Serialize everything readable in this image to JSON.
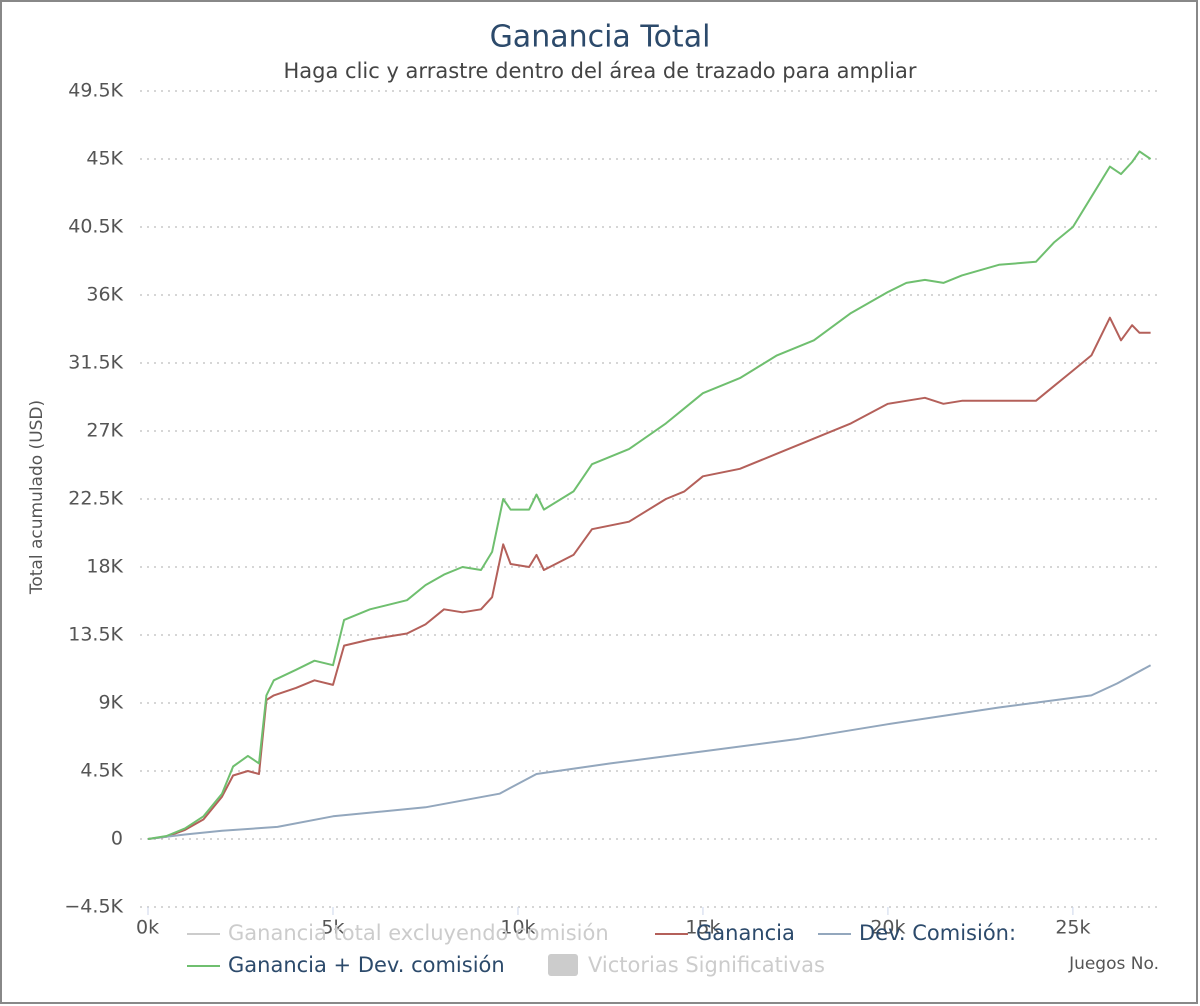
{
  "chart_data": {
    "type": "line",
    "title": "Ganancia Total",
    "subtitle": "Haga clic y arrastre dentro del área de trazado para ampliar",
    "y_label": "Total acumulado (USD)",
    "x_label": "Juegos No.",
    "xlim": [
      0,
      27300
    ],
    "ylim": [
      -4500,
      49500
    ],
    "xticks": [
      {
        "value": 0,
        "label": "0k"
      },
      {
        "value": 5000,
        "label": "5k"
      },
      {
        "value": 10000,
        "label": "10k"
      },
      {
        "value": 15000,
        "label": "15k"
      },
      {
        "value": 20000,
        "label": "20k"
      },
      {
        "value": 25000,
        "label": "25k"
      }
    ],
    "yticks": [
      {
        "value": -4500,
        "label": "−4.5K"
      },
      0,
      {
        "value": 4500,
        "label": "4.5K"
      },
      {
        "value": 9000,
        "label": "9K"
      },
      {
        "value": 13500,
        "label": "13.5K"
      },
      {
        "value": 18000,
        "label": "18K"
      },
      {
        "value": 22500,
        "label": "22.5K"
      },
      {
        "value": 27000,
        "label": "27K"
      },
      {
        "value": 31500,
        "label": "31.5K"
      },
      {
        "value": 36000,
        "label": "36K"
      },
      {
        "value": 40500,
        "label": "40.5K"
      },
      {
        "value": 45000,
        "label": "45K"
      },
      {
        "value": 49500,
        "label": "49.5K"
      }
    ],
    "grid": true,
    "hidden_series": [
      {
        "name": "Ganancia total excluyendo comisión",
        "color": "#cccccc"
      },
      {
        "name": "Victorias Significativas",
        "color": "#cccccc"
      }
    ],
    "series": [
      {
        "name": "Ganancia",
        "color": "#b4605a",
        "x": [
          0,
          500,
          1000,
          1500,
          2000,
          2300,
          2700,
          3000,
          3200,
          3400,
          4000,
          4500,
          5000,
          5300,
          6000,
          7000,
          7500,
          8000,
          8500,
          9000,
          9300,
          9600,
          9800,
          10300,
          10500,
          10700,
          11500,
          12000,
          13000,
          14000,
          14500,
          15000,
          16000,
          17000,
          18000,
          19000,
          20000,
          20500,
          21000,
          21500,
          22000,
          23000,
          24000,
          24500,
          25000,
          25500,
          26000,
          26300,
          26600,
          26800,
          27100
        ],
        "values": [
          0,
          150,
          600,
          1300,
          2800,
          4200,
          4500,
          4300,
          9200,
          9500,
          10000,
          10500,
          10200,
          12800,
          13200,
          13600,
          14200,
          15200,
          15000,
          15200,
          16000,
          19500,
          18200,
          18000,
          18800,
          17800,
          18800,
          20500,
          21000,
          22500,
          23000,
          24000,
          24500,
          25500,
          26500,
          27500,
          28800,
          29000,
          29200,
          28800,
          29000,
          29000,
          29000,
          30000,
          31000,
          32000,
          34500,
          33000,
          34000,
          33500,
          33500
        ]
      },
      {
        "name": "Dev. Comisión:",
        "color": "#93a7bd",
        "x": [
          0,
          1000,
          2000,
          3500,
          5000,
          7500,
          9500,
          10500,
          12500,
          15000,
          17500,
          20000,
          23000,
          25500,
          26200,
          27100
        ],
        "values": [
          0,
          300,
          550,
          800,
          1500,
          2100,
          3000,
          4300,
          5000,
          5800,
          6600,
          7600,
          8700,
          9500,
          10300,
          11500
        ]
      },
      {
        "name": "Ganancia + Dev. comisión",
        "color": "#6fbf6f",
        "x": [
          0,
          500,
          1000,
          1500,
          2000,
          2300,
          2700,
          3000,
          3200,
          3400,
          4000,
          4500,
          5000,
          5300,
          6000,
          7000,
          7500,
          8000,
          8500,
          9000,
          9300,
          9600,
          9800,
          10300,
          10500,
          10700,
          11500,
          12000,
          13000,
          14000,
          14500,
          15000,
          16000,
          17000,
          18000,
          19000,
          20000,
          20500,
          21000,
          21500,
          22000,
          23000,
          24000,
          24500,
          25000,
          25500,
          26000,
          26300,
          26600,
          26800,
          27100
        ],
        "values": [
          0,
          200,
          700,
          1500,
          3000,
          4800,
          5500,
          5000,
          9500,
          10500,
          11200,
          11800,
          11500,
          14500,
          15200,
          15800,
          16800,
          17500,
          18000,
          17800,
          19000,
          22500,
          21800,
          21800,
          22800,
          21800,
          23000,
          24800,
          25800,
          27500,
          28500,
          29500,
          30500,
          32000,
          33000,
          34800,
          36200,
          36800,
          37000,
          36800,
          37300,
          38000,
          38200,
          39500,
          40500,
          42500,
          44500,
          44000,
          44800,
          45500,
          45000
        ]
      }
    ]
  }
}
